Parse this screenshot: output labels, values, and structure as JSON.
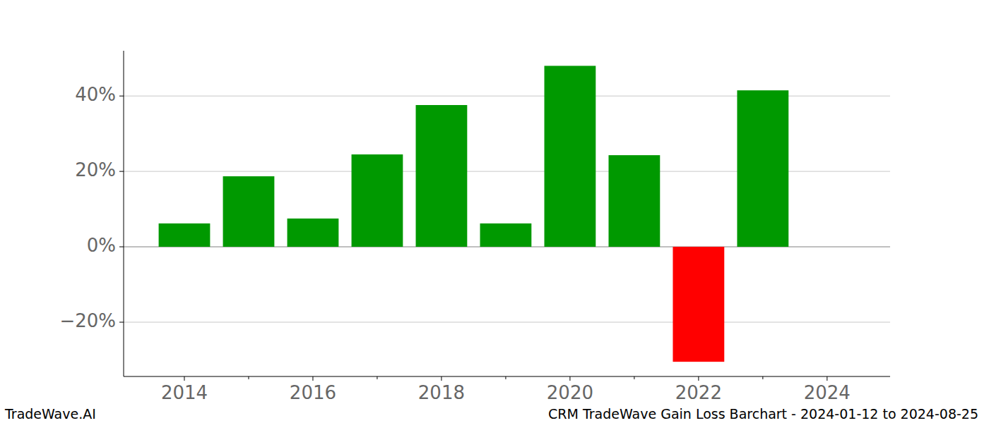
{
  "chart_data": {
    "type": "bar",
    "title": "CRM TradeWave Gain Loss Barchart - 2024-01-12 to 2024-08-25",
    "annotations": [
      "TradeWave.AI"
    ],
    "x": [
      2014,
      2015,
      2016,
      2017,
      2018,
      2019,
      2020,
      2021,
      2022,
      2023
    ],
    "values": [
      6.2,
      18.7,
      7.5,
      24.5,
      37.6,
      6.2,
      48.0,
      24.3,
      -30.5,
      41.5
    ],
    "colors": [
      "#009900",
      "#009900",
      "#009900",
      "#009900",
      "#009900",
      "#009900",
      "#009900",
      "#009900",
      "#ff0000",
      "#009900"
    ],
    "xlim": [
      2013.055,
      2024.98
    ],
    "xticks": [
      2014,
      2016,
      2018,
      2020,
      2022,
      2024
    ],
    "ylim": [
      -34.4,
      52.0
    ],
    "yticks": [
      {
        "value": -20,
        "label": "−20%"
      },
      {
        "value": 0,
        "label": "0%"
      },
      {
        "value": 20,
        "label": "20%"
      },
      {
        "value": 40,
        "label": "40%"
      }
    ],
    "grid": true
  }
}
